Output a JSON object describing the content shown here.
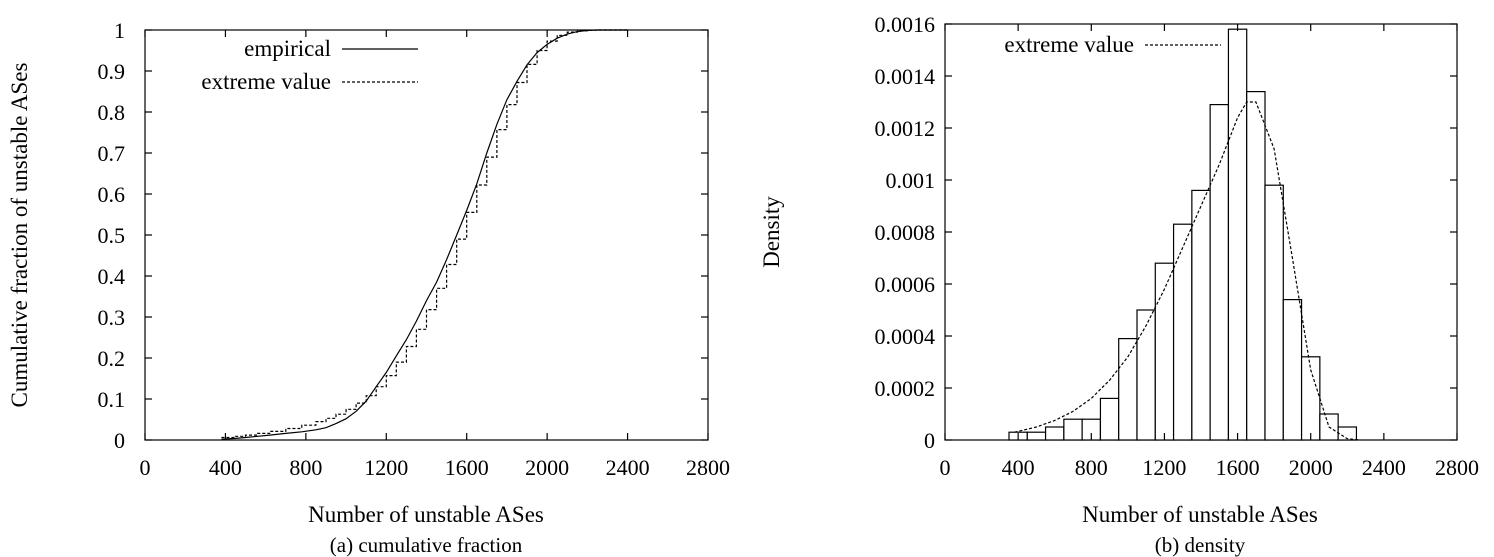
{
  "chart_data": [
    {
      "type": "line",
      "caption": "(a) cumulative fraction",
      "xlabel": "Number of unstable ASes",
      "ylabel": "Cumulative fraction of unstable ASes",
      "xlim": [
        0,
        2800
      ],
      "ylim": [
        0,
        1
      ],
      "xticks": [
        "0",
        "400",
        "800",
        "1200",
        "1600",
        "2000",
        "2400",
        "2800"
      ],
      "yticks": [
        "0",
        "0.1",
        "0.2",
        "0.3",
        "0.4",
        "0.5",
        "0.6",
        "0.7",
        "0.8",
        "0.9",
        "1"
      ],
      "grid": false,
      "legend_position": "top-left",
      "series": [
        {
          "name": "empirical",
          "style": "solid",
          "x": [
            380,
            450,
            500,
            560,
            620,
            700,
            780,
            850,
            900,
            950,
            1000,
            1050,
            1100,
            1150,
            1200,
            1250,
            1300,
            1350,
            1400,
            1450,
            1500,
            1550,
            1600,
            1650,
            1700,
            1750,
            1800,
            1850,
            1900,
            1950,
            2000,
            2050,
            2100,
            2150,
            2200,
            2250,
            2300,
            2400
          ],
          "y": [
            0.002,
            0.004,
            0.006,
            0.009,
            0.012,
            0.016,
            0.02,
            0.025,
            0.03,
            0.04,
            0.052,
            0.07,
            0.095,
            0.13,
            0.165,
            0.205,
            0.245,
            0.29,
            0.34,
            0.385,
            0.44,
            0.5,
            0.56,
            0.625,
            0.7,
            0.77,
            0.83,
            0.875,
            0.915,
            0.945,
            0.965,
            0.98,
            0.99,
            0.996,
            0.999,
            1.0,
            1.0,
            1.0
          ]
        },
        {
          "name": "extreme value",
          "style": "dashed",
          "x": [
            380,
            450,
            500,
            560,
            620,
            700,
            780,
            850,
            900,
            950,
            1000,
            1050,
            1100,
            1150,
            1200,
            1250,
            1300,
            1350,
            1400,
            1450,
            1500,
            1550,
            1600,
            1650,
            1700,
            1750,
            1800,
            1850,
            1900,
            1950,
            2000,
            2050,
            2100,
            2150,
            2200,
            2250,
            2300,
            2400
          ],
          "y": [
            0.006,
            0.009,
            0.012,
            0.016,
            0.021,
            0.028,
            0.036,
            0.045,
            0.053,
            0.063,
            0.075,
            0.09,
            0.108,
            0.13,
            0.157,
            0.19,
            0.228,
            0.27,
            0.318,
            0.37,
            0.428,
            0.49,
            0.555,
            0.622,
            0.69,
            0.757,
            0.818,
            0.872,
            0.916,
            0.95,
            0.973,
            0.987,
            0.995,
            0.998,
            0.9995,
            1.0,
            1.0,
            1.0
          ]
        }
      ]
    },
    {
      "type": "bar",
      "caption": "(b) density",
      "xlabel": "Number of unstable ASes",
      "ylabel": "Density",
      "xlim": [
        0,
        2800
      ],
      "ylim": [
        0,
        0.0016
      ],
      "xticks": [
        "0",
        "400",
        "800",
        "1200",
        "1600",
        "2000",
        "2400",
        "2800"
      ],
      "yticks": [
        "0",
        "0.0002",
        "0.0004",
        "0.0006",
        "0.0008",
        "0.001",
        "0.0012",
        "0.0014",
        "0.0016"
      ],
      "grid": false,
      "legend_position": "top-left",
      "histogram": {
        "bin_width": 100,
        "bin_starts": [
          350,
          450,
          550,
          650,
          750,
          850,
          950,
          1050,
          1150,
          1250,
          1350,
          1450,
          1550,
          1650,
          1750,
          1850,
          1950,
          2050,
          2150
        ],
        "values": [
          3e-05,
          3e-05,
          5e-05,
          8e-05,
          8e-05,
          0.00016,
          0.00039,
          0.0005,
          0.00068,
          0.00083,
          0.00096,
          0.00129,
          0.00158,
          0.00134,
          0.00098,
          0.00054,
          0.00032,
          0.0001,
          5e-05
        ]
      },
      "series": [
        {
          "name": "extreme value",
          "style": "dashed",
          "x": [
            380,
            500,
            600,
            700,
            800,
            900,
            1000,
            1100,
            1200,
            1300,
            1400,
            1500,
            1600,
            1650,
            1700,
            1800,
            1900,
            2000,
            2100,
            2200,
            2270
          ],
          "y": [
            3e-05,
            5e-05,
            7.5e-05,
            0.00011,
            0.00016,
            0.00023,
            0.00032,
            0.00044,
            0.00058,
            0.00074,
            0.0009,
            0.00106,
            0.00124,
            0.0013,
            0.0013,
            0.00112,
            0.0007,
            0.00027,
            5e-05,
            5e-06,
            0.0
          ]
        }
      ]
    }
  ]
}
